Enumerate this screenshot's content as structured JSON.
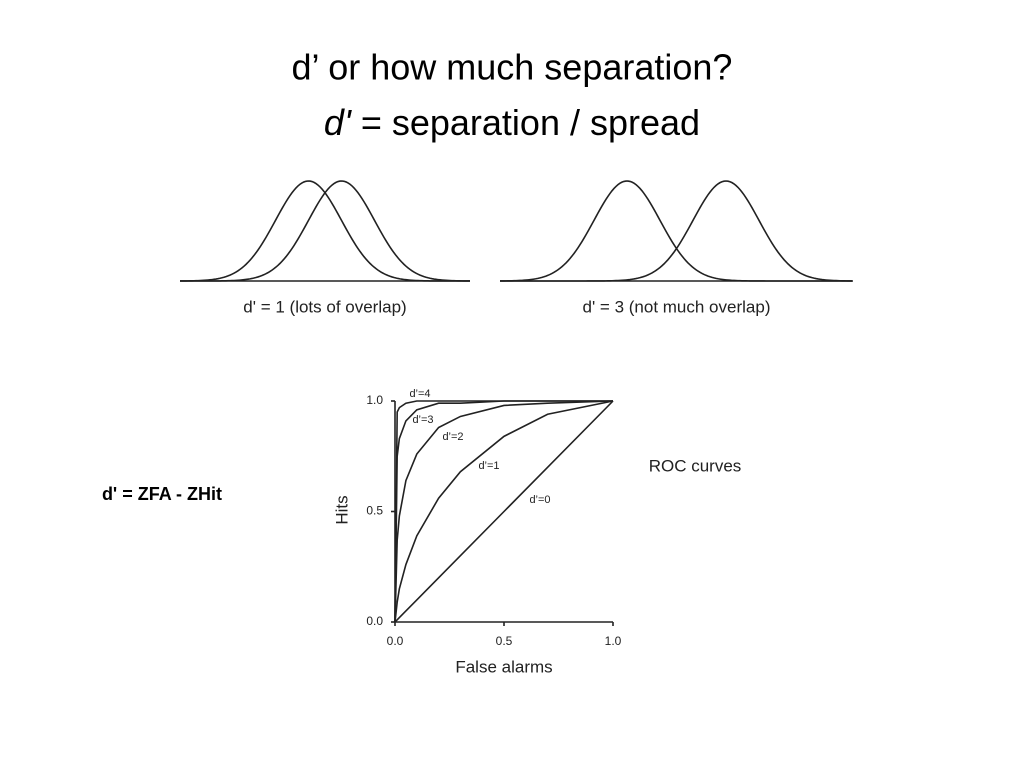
{
  "title": "d’  or how much separation?",
  "subtitle_italic": "d'",
  "subtitle_rest": "= separation / spread",
  "formula": "d' = ZFA - ZHit",
  "chart_data": [
    {
      "type": "distributions",
      "caption": "d' = 1 (lots of overlap)",
      "d_prime": 1
    },
    {
      "type": "distributions",
      "caption": "d' = 3 (not much overlap)",
      "d_prime": 3
    },
    {
      "type": "roc",
      "annotation": "ROC curves",
      "xlabel": "False alarms",
      "ylabel": "Hits",
      "xlim": [
        0,
        1
      ],
      "ylim": [
        0,
        1
      ],
      "xticks": [
        {
          "value": 0,
          "label": "0.0"
        },
        {
          "value": 0.5,
          "label": "0.5"
        },
        {
          "value": 1,
          "label": "1.0"
        }
      ],
      "yticks": [
        {
          "value": 0,
          "label": "0.0"
        },
        {
          "value": 0.5,
          "label": "0.5"
        },
        {
          "value": 1,
          "label": "1.0"
        }
      ],
      "x": [
        0,
        0.01,
        0.02,
        0.05,
        0.1,
        0.2,
        0.3,
        0.5,
        0.7,
        1
      ],
      "series": [
        {
          "name": "d’=4",
          "color": "#000000",
          "values": [
            0,
            0.95,
            0.97,
            0.99,
            1,
            1,
            1,
            1,
            1,
            1
          ]
        },
        {
          "name": "d’=3",
          "color": "#000000",
          "values": [
            0,
            0.75,
            0.83,
            0.91,
            0.96,
            0.99,
            0.99,
            1,
            1,
            1
          ]
        },
        {
          "name": "d’=2",
          "color": "#000000",
          "values": [
            0,
            0.37,
            0.48,
            0.64,
            0.76,
            0.88,
            0.93,
            0.98,
            0.99,
            1
          ]
        },
        {
          "name": "d’=1",
          "color": "#000000",
          "values": [
            0,
            0.09,
            0.15,
            0.26,
            0.39,
            0.56,
            0.68,
            0.84,
            0.94,
            1
          ]
        },
        {
          "name": "d’=0",
          "color": "#000000",
          "values": [
            0,
            0.01,
            0.02,
            0.05,
            0.1,
            0.2,
            0.3,
            0.5,
            0.7,
            1
          ]
        }
      ]
    }
  ]
}
